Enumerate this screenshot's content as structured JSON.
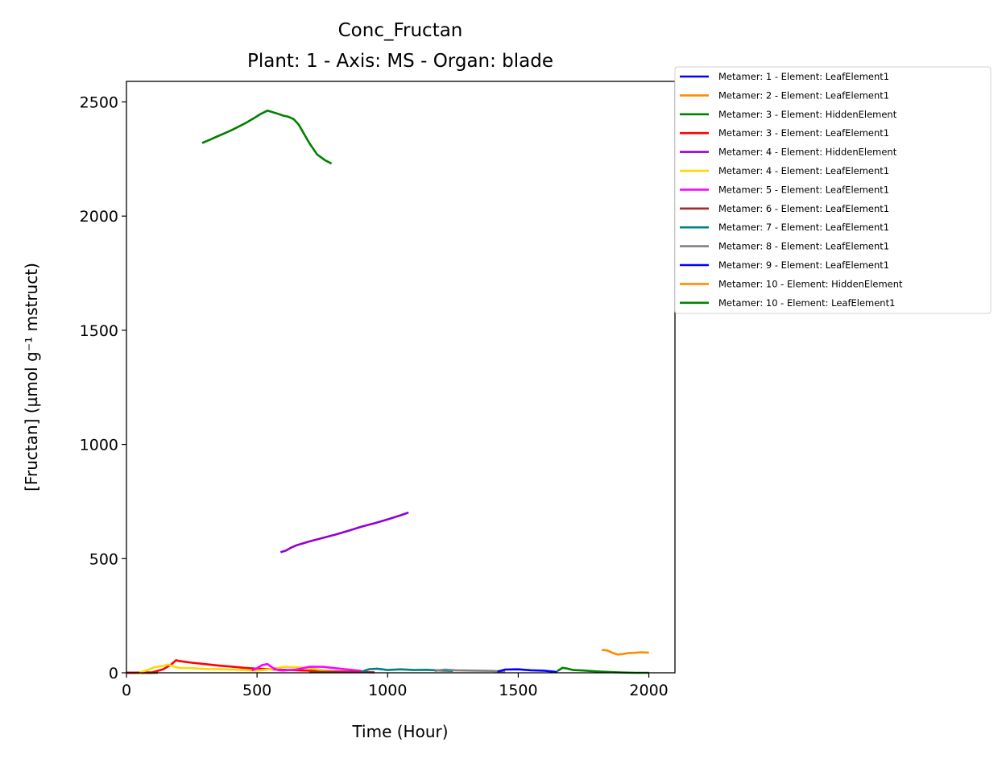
{
  "chart_data": {
    "type": "line",
    "title": "Conc_Fructan",
    "subtitle": "Plant: 1 - Axis: MS - Organ: blade",
    "xlabel": "Time (Hour)",
    "ylabel": "[Fructan] (µmol g⁻¹ mstruct)",
    "xlim": [
      0,
      2100
    ],
    "ylim": [
      0,
      2590
    ],
    "xticks": [
      0,
      500,
      1000,
      1500,
      2000
    ],
    "yticks": [
      0,
      500,
      1000,
      1500,
      2000,
      2500
    ],
    "grid": false,
    "legend_position": "outside-top-right",
    "series": [
      {
        "name": "Metamer: 1 - Element: LeafElement1",
        "color": "#0000ff",
        "x": [
          0,
          100
        ],
        "y": [
          0,
          0
        ]
      },
      {
        "name": "Metamer: 2 - Element: LeafElement1",
        "color": "#ff8c00",
        "x": [
          0,
          110
        ],
        "y": [
          0,
          0
        ]
      },
      {
        "name": "Metamer: 3 - Element: HiddenElement",
        "color": "#008000",
        "x": [
          0,
          120
        ],
        "y": [
          0,
          0
        ]
      },
      {
        "name": "Metamer: 3 - Element: LeafElement1",
        "color": "#ff0000",
        "x": [
          0,
          100,
          140,
          170,
          180,
          190,
          200,
          250,
          300,
          350,
          400,
          450,
          500,
          600,
          700,
          800,
          900
        ],
        "y": [
          0,
          2,
          15,
          35,
          45,
          55,
          52,
          44,
          38,
          32,
          27,
          22,
          18,
          13,
          9,
          6,
          3
        ]
      },
      {
        "name": "Metamer: 4 - Element: HiddenElement",
        "color": "#9400d3",
        "x": [
          590,
          610,
          630,
          650,
          700,
          750,
          800,
          850,
          900,
          950,
          1000,
          1050,
          1080
        ],
        "y": [
          528,
          535,
          548,
          558,
          575,
          590,
          605,
          622,
          640,
          655,
          672,
          690,
          702
        ]
      },
      {
        "name": "Metamer: 4 - Element: LeafElement1",
        "color": "#ffd700",
        "x": [
          50,
          80,
          110,
          140,
          160,
          180,
          200,
          250,
          300,
          350,
          400,
          450,
          500,
          550,
          600,
          650,
          700,
          750,
          800
        ],
        "y": [
          0,
          12,
          25,
          30,
          36,
          28,
          22,
          20,
          17,
          16,
          14,
          12,
          10,
          15,
          26,
          24,
          20,
          12,
          5
        ]
      },
      {
        "name": "Metamer: 5 - Element: LeafElement1",
        "color": "#ff00ff",
        "x": [
          480,
          500,
          520,
          540,
          560,
          580,
          600,
          650,
          700,
          750,
          800,
          850,
          900
        ],
        "y": [
          10,
          20,
          34,
          38,
          22,
          12,
          10,
          14,
          26,
          26,
          20,
          14,
          8
        ]
      },
      {
        "name": "Metamer: 6 - Element: LeafElement1",
        "color": "#a52a2a",
        "x": [
          700,
          800,
          900,
          950
        ],
        "y": [
          4,
          5,
          3,
          2
        ]
      },
      {
        "name": "Metamer: 7 - Element: LeafElement1",
        "color": "#008080",
        "x": [
          900,
          930,
          960,
          1000,
          1050,
          1100,
          1150,
          1200,
          1250
        ],
        "y": [
          5,
          16,
          18,
          12,
          15,
          12,
          13,
          10,
          8
        ]
      },
      {
        "name": "Metamer: 8 - Element: LeafElement1",
        "color": "#808080",
        "x": [
          1180,
          1220,
          1260,
          1300,
          1350,
          1400,
          1450
        ],
        "y": [
          8,
          14,
          11,
          10,
          9,
          8,
          5
        ]
      },
      {
        "name": "Metamer: 9 - Element: LeafElement1",
        "color": "#0000ff",
        "x": [
          1420,
          1450,
          1500,
          1550,
          1600,
          1650
        ],
        "y": [
          5,
          14,
          15,
          11,
          9,
          3
        ]
      },
      {
        "name": "Metamer: 10 - Element: HiddenElement",
        "color": "#ff8c00",
        "x": [
          1820,
          1840,
          1860,
          1880,
          1900,
          1920,
          1950,
          1970,
          2000
        ],
        "y": [
          100,
          98,
          88,
          80,
          82,
          86,
          88,
          90,
          88
        ]
      },
      {
        "name": "Metamer: 10 - Element: LeafElement1",
        "color": "#008000",
        "x": [
          1650,
          1670,
          1690,
          1710,
          1750,
          1800,
          1850,
          1900,
          1950,
          2000
        ],
        "y": [
          8,
          22,
          18,
          12,
          10,
          6,
          3,
          1,
          0,
          0
        ]
      },
      {
        "name": "",
        "color": "#008000",
        "x": [
          290,
          320,
          350,
          380,
          400,
          430,
          460,
          490,
          510,
          540,
          560,
          580,
          600,
          620,
          640,
          660,
          680,
          700,
          730,
          760,
          785
        ],
        "y": [
          2320,
          2335,
          2350,
          2365,
          2375,
          2392,
          2410,
          2430,
          2445,
          2462,
          2455,
          2448,
          2440,
          2435,
          2425,
          2400,
          2360,
          2320,
          2270,
          2245,
          2230
        ]
      }
    ]
  }
}
